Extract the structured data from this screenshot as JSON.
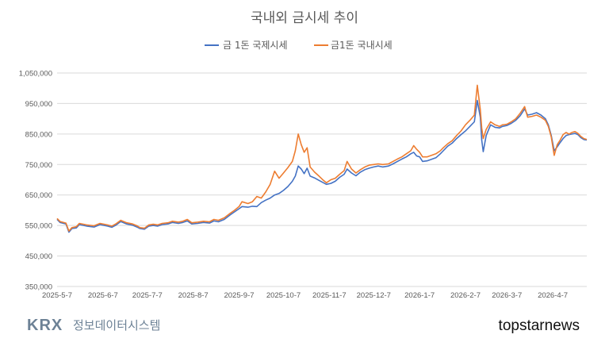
{
  "chart_data": {
    "type": "line",
    "title": "국내외 금시세 추이",
    "xlabel": "",
    "ylabel": "",
    "ylim": [
      350000,
      1050000
    ],
    "yticks": [
      "350,000",
      "450,000",
      "550,000",
      "650,000",
      "750,000",
      "850,000",
      "950,000",
      "1,050,000"
    ],
    "ytick_values": [
      350000,
      450000,
      550000,
      650000,
      750000,
      850000,
      950000,
      1050000
    ],
    "xticks": [
      "2025-5-7",
      "2025-6-7",
      "2025-7-7",
      "2025-8-7",
      "2025-9-7",
      "2025-10-7",
      "2025-11-7",
      "2025-12-7",
      "2026-1-7",
      "2026-2-7",
      "2026-3-7",
      "2026-4-7"
    ],
    "xtick_dates": [
      "2025-05-07",
      "2025-06-07",
      "2025-07-07",
      "2025-08-07",
      "2025-09-07",
      "2025-10-07",
      "2025-11-07",
      "2025-12-07",
      "2026-01-07",
      "2026-02-07",
      "2026-03-07",
      "2026-04-07"
    ],
    "xlim": [
      "2025-05-07",
      "2026-04-30"
    ],
    "grid": true,
    "legend_position": "top",
    "series": [
      {
        "name": "금 1돈 국제시세",
        "color": "#4472c4",
        "points": [
          [
            "2025-05-07",
            570000
          ],
          [
            "2025-05-09",
            560000
          ],
          [
            "2025-05-13",
            555000
          ],
          [
            "2025-05-15",
            528000
          ],
          [
            "2025-05-17",
            540000
          ],
          [
            "2025-05-20",
            542000
          ],
          [
            "2025-05-22",
            553000
          ],
          [
            "2025-05-27",
            548000
          ],
          [
            "2025-06-01",
            545000
          ],
          [
            "2025-06-05",
            553000
          ],
          [
            "2025-06-10",
            548000
          ],
          [
            "2025-06-13",
            544000
          ],
          [
            "2025-06-16",
            552000
          ],
          [
            "2025-06-19",
            563000
          ],
          [
            "2025-06-23",
            555000
          ],
          [
            "2025-06-27",
            551000
          ],
          [
            "2025-06-30",
            545000
          ],
          [
            "2025-07-02",
            540000
          ],
          [
            "2025-07-05",
            538000
          ],
          [
            "2025-07-08",
            548000
          ],
          [
            "2025-07-11",
            550000
          ],
          [
            "2025-07-14",
            548000
          ],
          [
            "2025-07-17",
            553000
          ],
          [
            "2025-07-21",
            555000
          ],
          [
            "2025-07-24",
            560000
          ],
          [
            "2025-07-28",
            557000
          ],
          [
            "2025-07-31",
            560000
          ],
          [
            "2025-08-03",
            565000
          ],
          [
            "2025-08-06",
            555000
          ],
          [
            "2025-08-10",
            557000
          ],
          [
            "2025-08-14",
            560000
          ],
          [
            "2025-08-18",
            558000
          ],
          [
            "2025-08-21",
            565000
          ],
          [
            "2025-08-24",
            562000
          ],
          [
            "2025-08-28",
            570000
          ],
          [
            "2025-09-01",
            585000
          ],
          [
            "2025-09-04",
            595000
          ],
          [
            "2025-09-07",
            605000
          ],
          [
            "2025-09-09",
            612000
          ],
          [
            "2025-09-13",
            610000
          ],
          [
            "2025-09-16",
            613000
          ],
          [
            "2025-09-19",
            612000
          ],
          [
            "2025-09-22",
            625000
          ],
          [
            "2025-09-25",
            633000
          ],
          [
            "2025-09-28",
            640000
          ],
          [
            "2025-10-01",
            650000
          ],
          [
            "2025-10-04",
            655000
          ],
          [
            "2025-10-07",
            665000
          ],
          [
            "2025-10-10",
            678000
          ],
          [
            "2025-10-13",
            695000
          ],
          [
            "2025-10-15",
            712000
          ],
          [
            "2025-10-17",
            745000
          ],
          [
            "2025-10-19",
            735000
          ],
          [
            "2025-10-21",
            720000
          ],
          [
            "2025-10-23",
            738000
          ],
          [
            "2025-10-25",
            712000
          ],
          [
            "2025-10-28",
            706000
          ],
          [
            "2025-10-31",
            698000
          ],
          [
            "2025-11-03",
            690000
          ],
          [
            "2025-11-05",
            685000
          ],
          [
            "2025-11-08",
            688000
          ],
          [
            "2025-11-11",
            695000
          ],
          [
            "2025-11-14",
            708000
          ],
          [
            "2025-11-17",
            718000
          ],
          [
            "2025-11-19",
            735000
          ],
          [
            "2025-11-22",
            722000
          ],
          [
            "2025-11-25",
            713000
          ],
          [
            "2025-11-28",
            725000
          ],
          [
            "2025-12-01",
            733000
          ],
          [
            "2025-12-04",
            738000
          ],
          [
            "2025-12-07",
            742000
          ],
          [
            "2025-12-10",
            745000
          ],
          [
            "2025-12-13",
            742000
          ],
          [
            "2025-12-17",
            745000
          ],
          [
            "2025-12-20",
            752000
          ],
          [
            "2025-12-23",
            760000
          ],
          [
            "2025-12-26",
            768000
          ],
          [
            "2025-12-29",
            775000
          ],
          [
            "2026-01-01",
            785000
          ],
          [
            "2026-01-03",
            790000
          ],
          [
            "2026-01-05",
            778000
          ],
          [
            "2026-01-07",
            775000
          ],
          [
            "2026-01-09",
            760000
          ],
          [
            "2026-01-12",
            762000
          ],
          [
            "2026-01-15",
            767000
          ],
          [
            "2026-01-18",
            772000
          ],
          [
            "2026-01-21",
            785000
          ],
          [
            "2026-01-23",
            795000
          ],
          [
            "2026-01-26",
            810000
          ],
          [
            "2026-01-29",
            820000
          ],
          [
            "2026-02-01",
            835000
          ],
          [
            "2026-02-04",
            848000
          ],
          [
            "2026-02-07",
            860000
          ],
          [
            "2026-02-10",
            875000
          ],
          [
            "2026-02-13",
            890000
          ],
          [
            "2026-02-15",
            960000
          ],
          [
            "2026-02-17",
            905000
          ],
          [
            "2026-02-18",
            830000
          ],
          [
            "2026-02-19",
            792000
          ],
          [
            "2026-02-21",
            845000
          ],
          [
            "2026-02-24",
            880000
          ],
          [
            "2026-02-27",
            872000
          ],
          [
            "2026-03-02",
            870000
          ],
          [
            "2026-03-04",
            875000
          ],
          [
            "2026-03-07",
            878000
          ],
          [
            "2026-03-10",
            885000
          ],
          [
            "2026-03-13",
            895000
          ],
          [
            "2026-03-16",
            910000
          ],
          [
            "2026-03-19",
            932000
          ],
          [
            "2026-03-21",
            912000
          ],
          [
            "2026-03-24",
            915000
          ],
          [
            "2026-03-27",
            920000
          ],
          [
            "2026-03-30",
            912000
          ],
          [
            "2026-04-02",
            900000
          ],
          [
            "2026-04-04",
            880000
          ],
          [
            "2026-04-06",
            845000
          ],
          [
            "2026-04-08",
            795000
          ],
          [
            "2026-04-10",
            808000
          ],
          [
            "2026-04-12",
            822000
          ],
          [
            "2026-04-14",
            835000
          ],
          [
            "2026-04-16",
            845000
          ],
          [
            "2026-04-18",
            848000
          ],
          [
            "2026-04-20",
            850000
          ],
          [
            "2026-04-22",
            852000
          ],
          [
            "2026-04-24",
            848000
          ],
          [
            "2026-04-26",
            838000
          ],
          [
            "2026-04-28",
            832000
          ],
          [
            "2026-04-30",
            830000
          ]
        ]
      },
      {
        "name": "금1돈 국내시세",
        "color": "#ed7d31",
        "points": [
          [
            "2025-05-07",
            573000
          ],
          [
            "2025-05-09",
            563000
          ],
          [
            "2025-05-13",
            558000
          ],
          [
            "2025-05-15",
            532000
          ],
          [
            "2025-05-17",
            543000
          ],
          [
            "2025-05-20",
            546000
          ],
          [
            "2025-05-22",
            557000
          ],
          [
            "2025-05-27",
            552000
          ],
          [
            "2025-06-01",
            549000
          ],
          [
            "2025-06-05",
            557000
          ],
          [
            "2025-06-10",
            552000
          ],
          [
            "2025-06-13",
            548000
          ],
          [
            "2025-06-16",
            556000
          ],
          [
            "2025-06-19",
            567000
          ],
          [
            "2025-06-23",
            559000
          ],
          [
            "2025-06-27",
            555000
          ],
          [
            "2025-06-30",
            549000
          ],
          [
            "2025-07-02",
            543000
          ],
          [
            "2025-07-05",
            541000
          ],
          [
            "2025-07-08",
            552000
          ],
          [
            "2025-07-11",
            554000
          ],
          [
            "2025-07-14",
            552000
          ],
          [
            "2025-07-17",
            557000
          ],
          [
            "2025-07-21",
            559000
          ],
          [
            "2025-07-24",
            564000
          ],
          [
            "2025-07-28",
            561000
          ],
          [
            "2025-07-31",
            564000
          ],
          [
            "2025-08-03",
            570000
          ],
          [
            "2025-08-06",
            559000
          ],
          [
            "2025-08-10",
            561000
          ],
          [
            "2025-08-14",
            564000
          ],
          [
            "2025-08-18",
            562000
          ],
          [
            "2025-08-21",
            570000
          ],
          [
            "2025-08-24",
            567000
          ],
          [
            "2025-08-28",
            575000
          ],
          [
            "2025-09-01",
            590000
          ],
          [
            "2025-09-04",
            600000
          ],
          [
            "2025-09-07",
            612000
          ],
          [
            "2025-09-09",
            628000
          ],
          [
            "2025-09-13",
            622000
          ],
          [
            "2025-09-16",
            628000
          ],
          [
            "2025-09-19",
            645000
          ],
          [
            "2025-09-22",
            640000
          ],
          [
            "2025-09-25",
            660000
          ],
          [
            "2025-09-28",
            685000
          ],
          [
            "2025-10-01",
            728000
          ],
          [
            "2025-10-04",
            705000
          ],
          [
            "2025-10-07",
            722000
          ],
          [
            "2025-10-10",
            740000
          ],
          [
            "2025-10-13",
            760000
          ],
          [
            "2025-10-15",
            795000
          ],
          [
            "2025-10-17",
            850000
          ],
          [
            "2025-10-19",
            815000
          ],
          [
            "2025-10-21",
            790000
          ],
          [
            "2025-10-23",
            805000
          ],
          [
            "2025-10-25",
            742000
          ],
          [
            "2025-10-28",
            725000
          ],
          [
            "2025-10-31",
            712000
          ],
          [
            "2025-11-03",
            698000
          ],
          [
            "2025-11-05",
            690000
          ],
          [
            "2025-11-08",
            700000
          ],
          [
            "2025-11-11",
            705000
          ],
          [
            "2025-11-14",
            718000
          ],
          [
            "2025-11-17",
            730000
          ],
          [
            "2025-11-19",
            760000
          ],
          [
            "2025-11-22",
            735000
          ],
          [
            "2025-11-25",
            722000
          ],
          [
            "2025-11-28",
            733000
          ],
          [
            "2025-12-01",
            742000
          ],
          [
            "2025-12-04",
            748000
          ],
          [
            "2025-12-07",
            750000
          ],
          [
            "2025-12-10",
            752000
          ],
          [
            "2025-12-13",
            750000
          ],
          [
            "2025-12-17",
            752000
          ],
          [
            "2025-12-20",
            760000
          ],
          [
            "2025-12-23",
            768000
          ],
          [
            "2025-12-26",
            775000
          ],
          [
            "2025-12-29",
            785000
          ],
          [
            "2026-01-01",
            795000
          ],
          [
            "2026-01-03",
            812000
          ],
          [
            "2026-01-05",
            800000
          ],
          [
            "2026-01-07",
            790000
          ],
          [
            "2026-01-09",
            775000
          ],
          [
            "2026-01-12",
            775000
          ],
          [
            "2026-01-15",
            780000
          ],
          [
            "2026-01-18",
            785000
          ],
          [
            "2026-01-21",
            795000
          ],
          [
            "2026-01-23",
            805000
          ],
          [
            "2026-01-26",
            818000
          ],
          [
            "2026-01-29",
            828000
          ],
          [
            "2026-02-01",
            845000
          ],
          [
            "2026-02-04",
            860000
          ],
          [
            "2026-02-07",
            880000
          ],
          [
            "2026-02-10",
            895000
          ],
          [
            "2026-02-13",
            912000
          ],
          [
            "2026-02-15",
            1010000
          ],
          [
            "2026-02-17",
            930000
          ],
          [
            "2026-02-18",
            870000
          ],
          [
            "2026-02-19",
            835000
          ],
          [
            "2026-02-21",
            865000
          ],
          [
            "2026-02-24",
            890000
          ],
          [
            "2026-02-27",
            880000
          ],
          [
            "2026-03-02",
            875000
          ],
          [
            "2026-03-04",
            880000
          ],
          [
            "2026-03-07",
            882000
          ],
          [
            "2026-03-10",
            890000
          ],
          [
            "2026-03-13",
            900000
          ],
          [
            "2026-03-16",
            918000
          ],
          [
            "2026-03-19",
            940000
          ],
          [
            "2026-03-21",
            905000
          ],
          [
            "2026-03-24",
            908000
          ],
          [
            "2026-03-27",
            912000
          ],
          [
            "2026-03-30",
            905000
          ],
          [
            "2026-04-02",
            895000
          ],
          [
            "2026-04-04",
            875000
          ],
          [
            "2026-04-06",
            840000
          ],
          [
            "2026-04-08",
            780000
          ],
          [
            "2026-04-10",
            815000
          ],
          [
            "2026-04-12",
            830000
          ],
          [
            "2026-04-14",
            848000
          ],
          [
            "2026-04-16",
            855000
          ],
          [
            "2026-04-18",
            850000
          ],
          [
            "2026-04-20",
            855000
          ],
          [
            "2026-04-22",
            858000
          ],
          [
            "2026-04-24",
            852000
          ],
          [
            "2026-04-26",
            842000
          ],
          [
            "2026-04-28",
            835000
          ],
          [
            "2026-04-30",
            832000
          ]
        ]
      }
    ]
  },
  "branding": {
    "logo_krx": "KRX",
    "logo_sub": "정보데이터시스템",
    "logo_color": "#6d8296",
    "watermark": "topstarnews"
  }
}
